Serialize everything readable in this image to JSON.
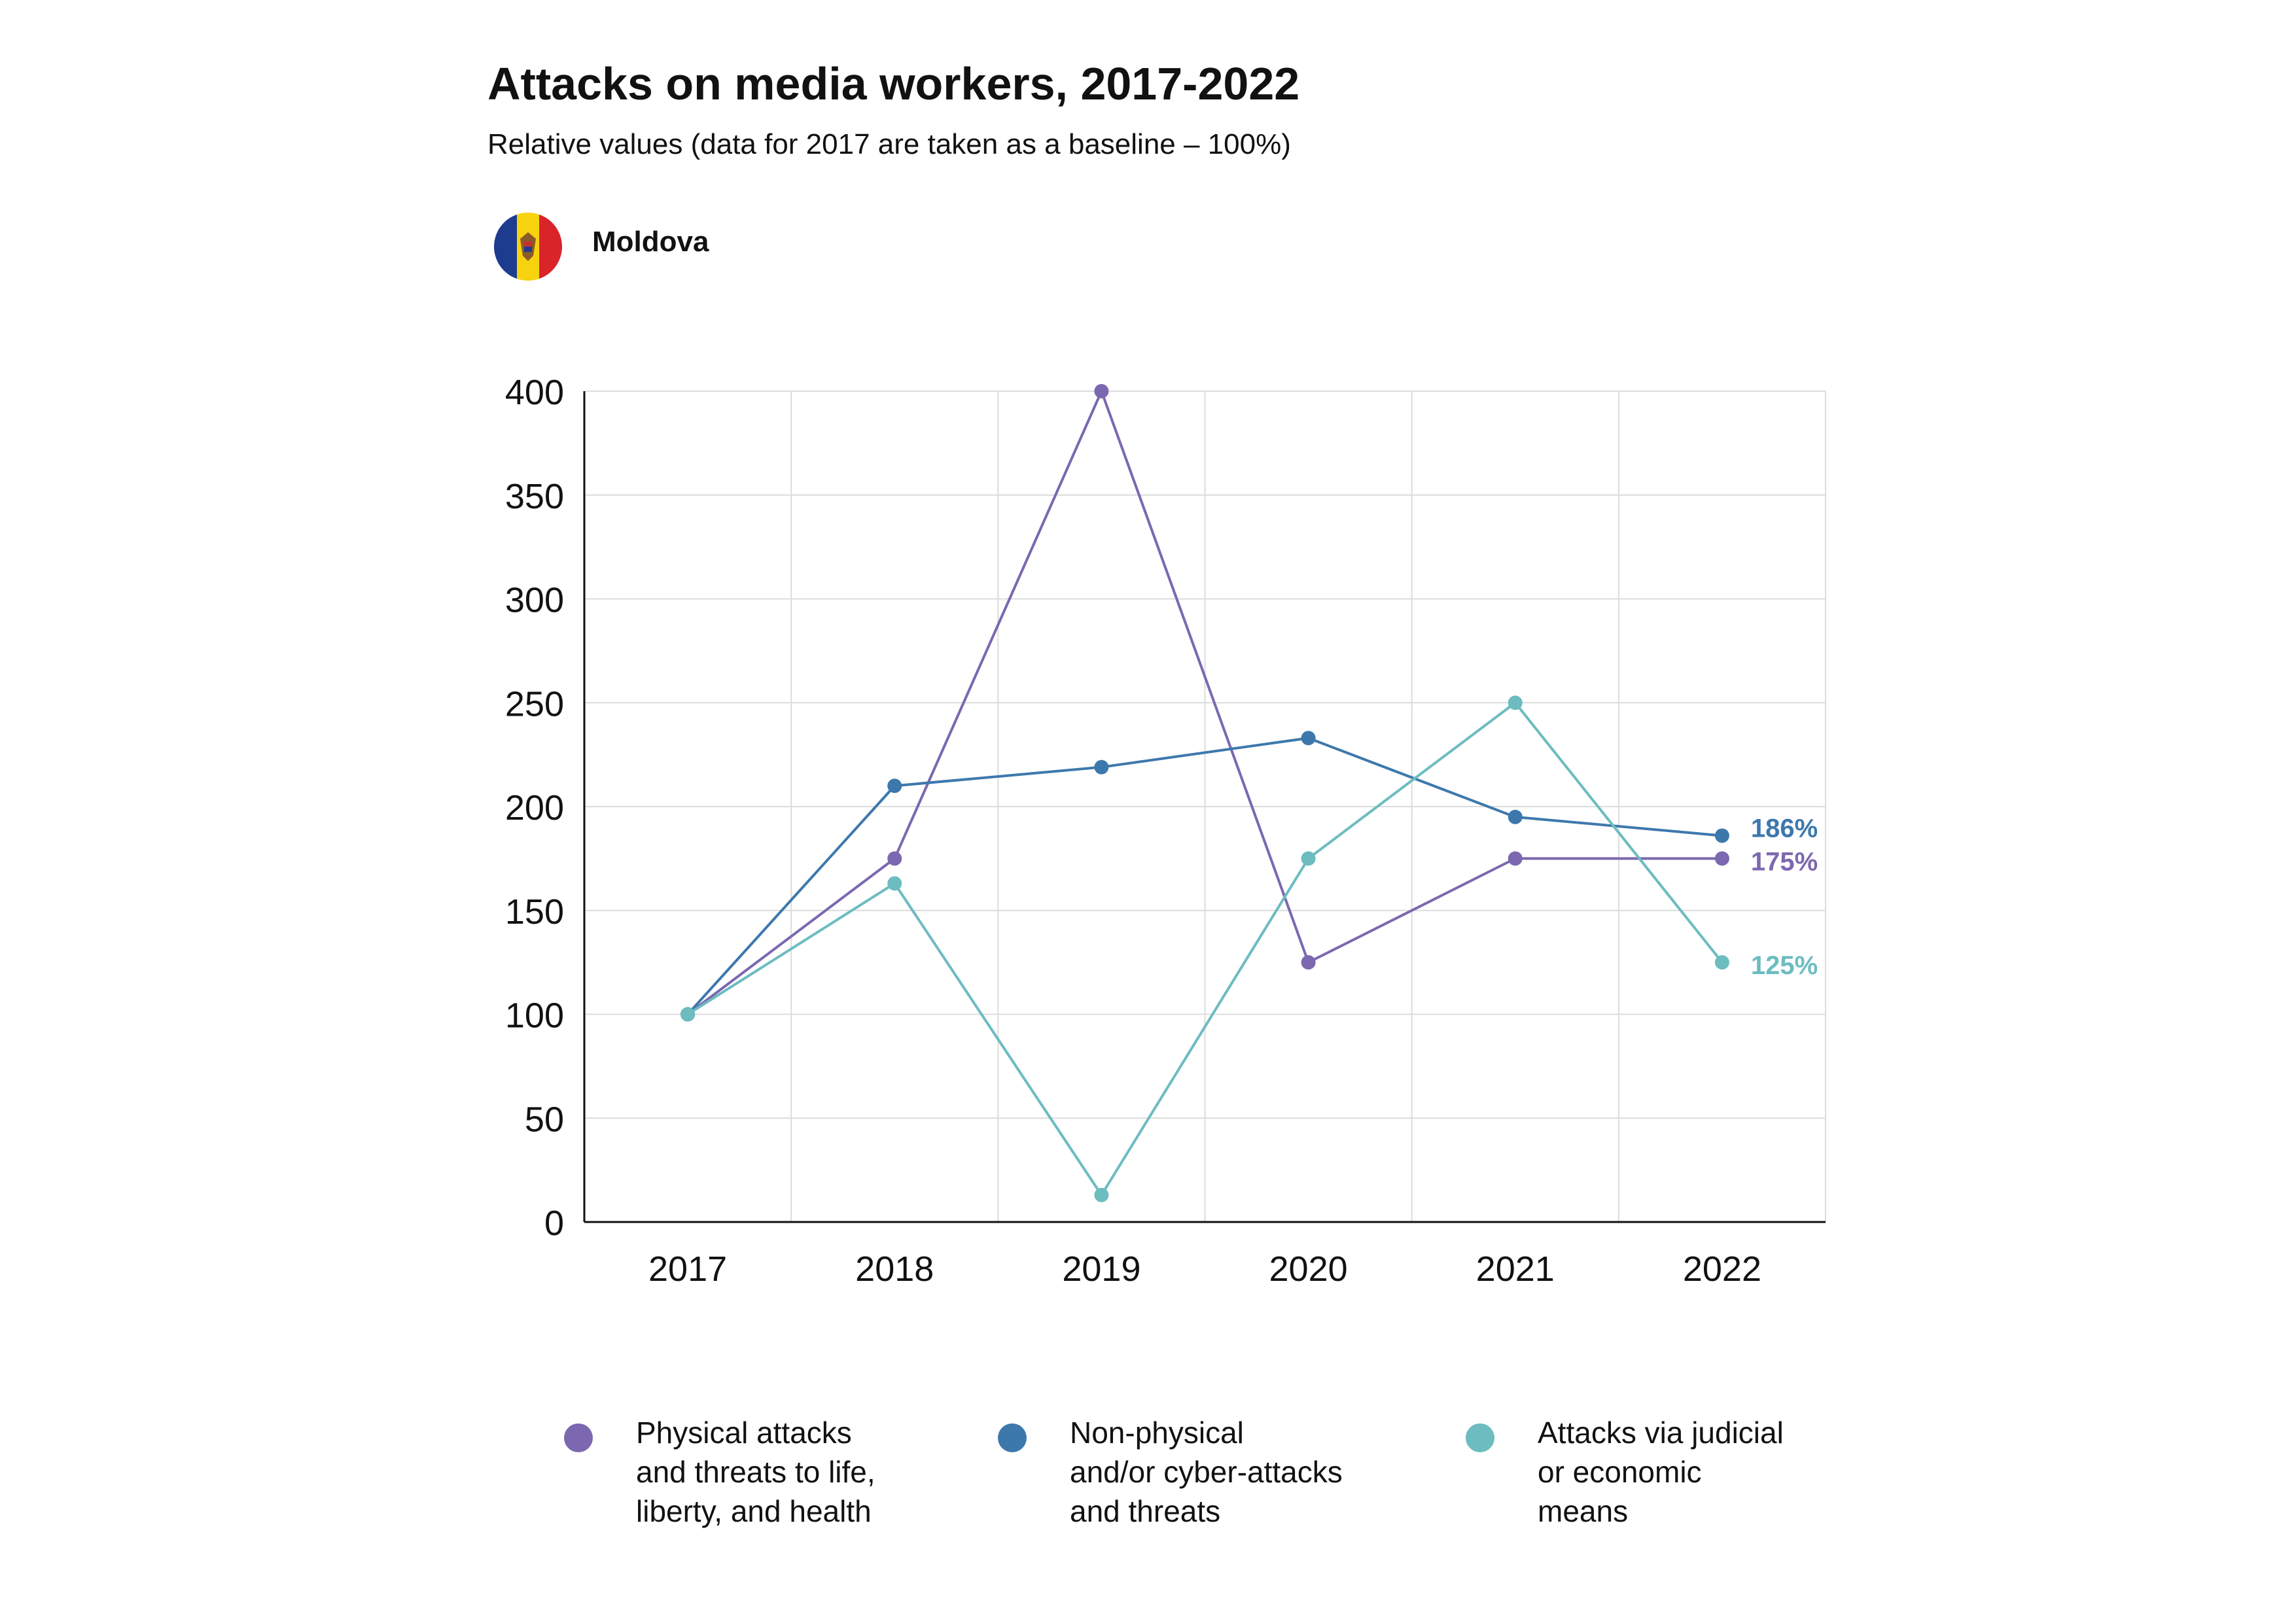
{
  "header": {
    "title": "Attacks on media workers, 2017-2022",
    "subtitle": "Relative values (data for 2017 are taken as a baseline – 100%)",
    "country": "Moldova",
    "flag_colors": [
      "#1d3c8f",
      "#f7d20e",
      "#d9242a"
    ]
  },
  "chart_data": {
    "type": "line",
    "title": "Attacks on media workers, 2017-2022",
    "subtitle": "Relative values (data for 2017 are taken as a baseline – 100%)",
    "xlabel": "",
    "ylabel": "",
    "x": [
      "2017",
      "2018",
      "2019",
      "2020",
      "2021",
      "2022"
    ],
    "ylim": [
      0,
      400
    ],
    "yticks": [
      0,
      50,
      100,
      150,
      200,
      250,
      300,
      350,
      400
    ],
    "grid": true,
    "legend_position": "bottom",
    "series": [
      {
        "name": "Physical attacks and threats to life, liberty, and health",
        "legend_lines": [
          "Physical attacks",
          "and threats to life,",
          "liberty, and health"
        ],
        "color": "#7b68b0",
        "values": [
          100,
          175,
          400,
          125,
          175,
          175
        ],
        "end_label": "175%"
      },
      {
        "name": "Non-physical and/or cyber-attacks and threats",
        "legend_lines": [
          "Non-physical",
          "and/or cyber-attacks",
          "and threats"
        ],
        "color": "#3d78ad",
        "values": [
          100,
          210,
          219,
          233,
          195,
          186
        ],
        "end_label": "186%"
      },
      {
        "name": "Attacks via judicial or economic means",
        "legend_lines": [
          "Attacks via judicial",
          "or economic",
          "means"
        ],
        "color": "#6cbcc0",
        "values": [
          100,
          163,
          13,
          175,
          250,
          125
        ],
        "end_label": "125%"
      }
    ]
  }
}
